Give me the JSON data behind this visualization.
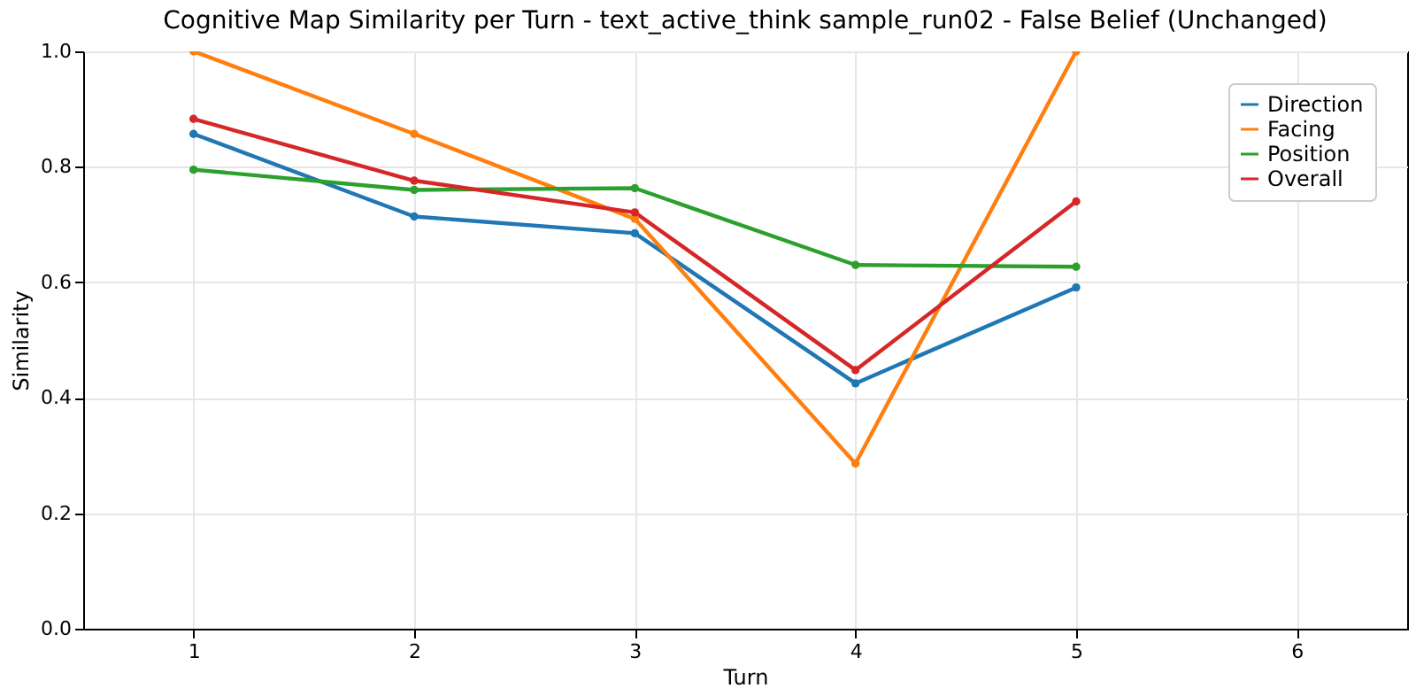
{
  "chart_data": {
    "type": "line",
    "title": "Cognitive Map Similarity per Turn - text_active_think sample_run02 - False Belief (Unchanged)",
    "xlabel": "Turn",
    "ylabel": "Similarity",
    "x": [
      1,
      2,
      3,
      4,
      5
    ],
    "series": [
      {
        "name": "Direction",
        "color": "#1f77b4",
        "values": [
          0.857,
          0.714,
          0.685,
          0.425,
          0.591
        ]
      },
      {
        "name": "Facing",
        "color": "#ff7f0e",
        "values": [
          1.0,
          0.857,
          0.71,
          0.286,
          1.0
        ]
      },
      {
        "name": "Position",
        "color": "#2ca02c",
        "values": [
          0.795,
          0.76,
          0.763,
          0.63,
          0.627
        ]
      },
      {
        "name": "Overall",
        "color": "#d62728",
        "values": [
          0.883,
          0.776,
          0.721,
          0.448,
          0.74
        ]
      }
    ],
    "xlim": [
      0.5,
      6.5
    ],
    "xticks": [
      1,
      2,
      3,
      4,
      5,
      6
    ],
    "ylim": [
      0,
      1
    ],
    "yticks": [
      {
        "value": 0,
        "label": "0.0"
      },
      {
        "value": 0.2,
        "label": "0.2"
      },
      {
        "value": 0.4,
        "label": "0.4"
      },
      {
        "value": 0.6,
        "label": "0.6"
      },
      {
        "value": 0.8,
        "label": "0.8"
      },
      {
        "value": 1,
        "label": "1.0"
      }
    ],
    "grid": true,
    "legend": "top right",
    "marker": "circle",
    "line_style": "solid"
  }
}
